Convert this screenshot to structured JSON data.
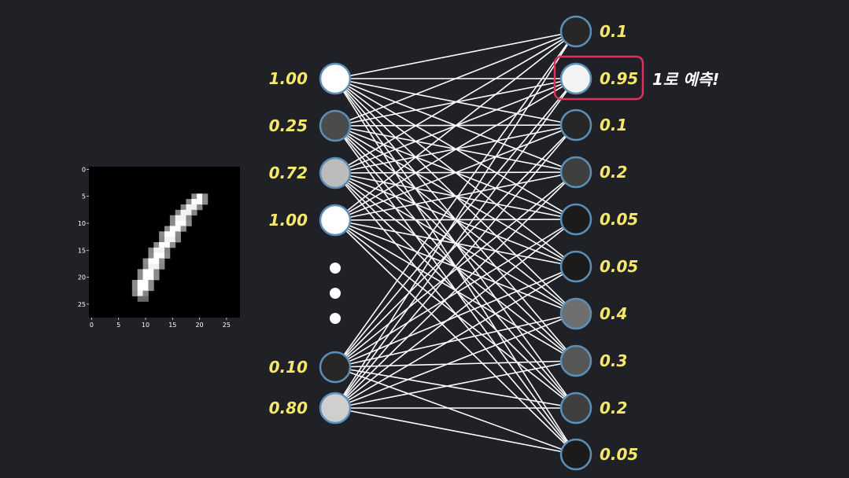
{
  "digit_image": {
    "x_ticks": [
      "0",
      "5",
      "10",
      "15",
      "20",
      "25"
    ],
    "y_ticks": [
      "0",
      "5",
      "10",
      "15",
      "20",
      "25"
    ]
  },
  "input_layer": [
    {
      "label": "1.00",
      "activation": 1.0
    },
    {
      "label": "0.25",
      "activation": 0.25
    },
    {
      "label": "0.72",
      "activation": 0.72
    },
    {
      "label": "1.00",
      "activation": 1.0
    },
    {
      "label": "0.10",
      "activation": 0.1
    },
    {
      "label": "0.80",
      "activation": 0.8
    }
  ],
  "output_layer": [
    {
      "label": "0.1",
      "activation": 0.1
    },
    {
      "label": "0.95",
      "activation": 0.95
    },
    {
      "label": "0.1",
      "activation": 0.1
    },
    {
      "label": "0.2",
      "activation": 0.2
    },
    {
      "label": "0.05",
      "activation": 0.05
    },
    {
      "label": "0.05",
      "activation": 0.05
    },
    {
      "label": "0.4",
      "activation": 0.4
    },
    {
      "label": "0.3",
      "activation": 0.3
    },
    {
      "label": "0.2",
      "activation": 0.2
    },
    {
      "label": "0.05",
      "activation": 0.05
    }
  ],
  "prediction": {
    "highlighted_output_index": 1,
    "note": "1로 예측!",
    "highlight_color": "#e0305f"
  },
  "colors": {
    "background": "#1f2126",
    "node_border": "#5b8fb8",
    "connection": "#ffffff",
    "value_text": "#f5e86a"
  }
}
